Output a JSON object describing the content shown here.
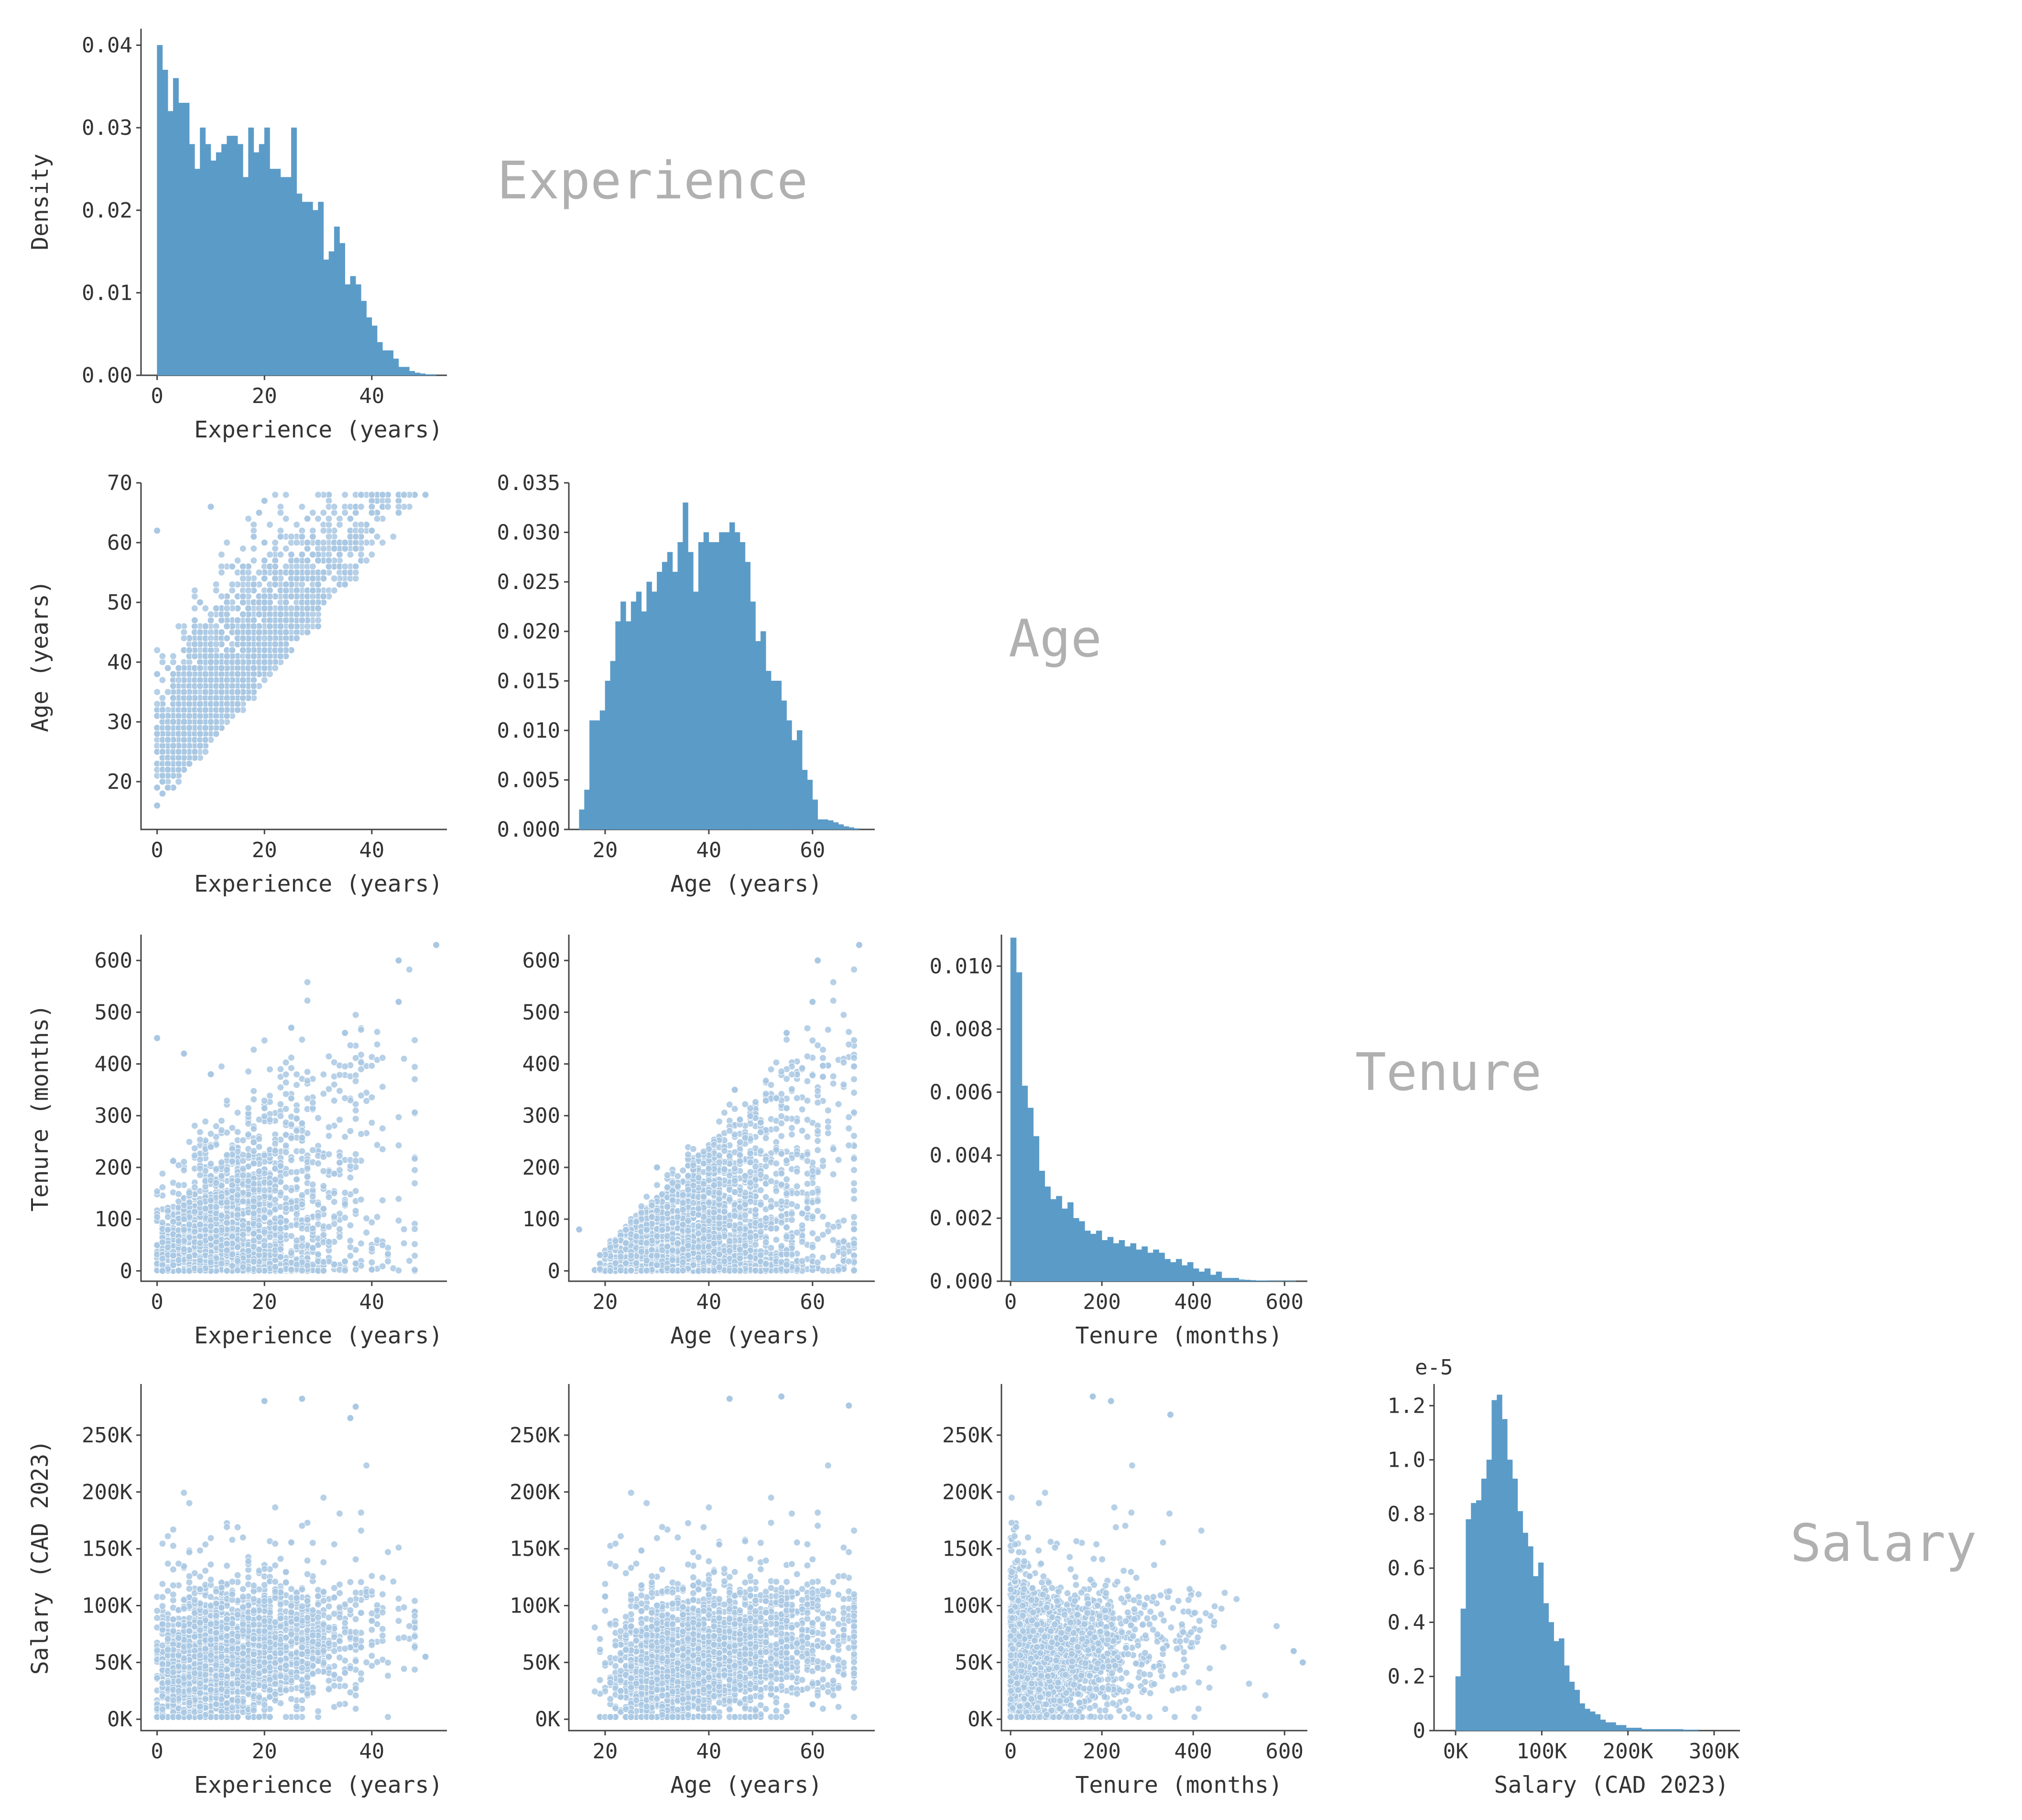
{
  "colors": {
    "hist": "#5b9bc8",
    "scatter": "#a9c8e3",
    "title": "#b0b0b0",
    "axis": "#444444"
  },
  "chart_data": [
    {
      "id": "exp-hist",
      "type": "bar",
      "xlabel": "Experience (years)",
      "ylabel": "Density",
      "xlim": [
        -3,
        54
      ],
      "ylim": [
        0,
        0.042
      ],
      "xticks": [
        0,
        20,
        40
      ],
      "yticks": [
        0.0,
        0.01,
        0.02,
        0.03,
        0.04
      ],
      "ytick_labels": [
        "0.00",
        "0.01",
        "0.02",
        "0.03",
        "0.04"
      ],
      "bin_start": 0,
      "bin_width": 1,
      "values": [
        0.04,
        0.037,
        0.032,
        0.036,
        0.033,
        0.033,
        0.028,
        0.025,
        0.03,
        0.028,
        0.026,
        0.027,
        0.028,
        0.029,
        0.029,
        0.028,
        0.024,
        0.03,
        0.027,
        0.028,
        0.03,
        0.025,
        0.025,
        0.024,
        0.024,
        0.03,
        0.022,
        0.021,
        0.021,
        0.02,
        0.021,
        0.014,
        0.015,
        0.018,
        0.016,
        0.011,
        0.012,
        0.011,
        0.009,
        0.007,
        0.006,
        0.004,
        0.003,
        0.003,
        0.002,
        0.001,
        0.001,
        0.0005,
        0.0003,
        0.0002,
        0.0001,
        0.0001
      ]
    },
    {
      "id": "age-hist",
      "type": "bar",
      "xlabel": "Age (years)",
      "xlim": [
        13,
        72
      ],
      "ylim": [
        0,
        0.035
      ],
      "xticks": [
        20,
        40,
        60
      ],
      "yticks": [
        0.0,
        0.005,
        0.01,
        0.015,
        0.02,
        0.025,
        0.03,
        0.035
      ],
      "ytick_labels": [
        "0.000",
        "0.005",
        "0.010",
        "0.015",
        "0.020",
        "0.025",
        "0.030",
        "0.035"
      ],
      "bin_start": 15,
      "bin_width": 1,
      "values": [
        0.002,
        0.004,
        0.011,
        0.011,
        0.012,
        0.015,
        0.017,
        0.021,
        0.023,
        0.021,
        0.023,
        0.024,
        0.022,
        0.025,
        0.024,
        0.026,
        0.027,
        0.028,
        0.026,
        0.029,
        0.033,
        0.028,
        0.024,
        0.029,
        0.03,
        0.029,
        0.029,
        0.03,
        0.03,
        0.031,
        0.03,
        0.029,
        0.027,
        0.023,
        0.019,
        0.02,
        0.016,
        0.015,
        0.015,
        0.013,
        0.011,
        0.009,
        0.01,
        0.006,
        0.005,
        0.003,
        0.001,
        0.001,
        0.0009,
        0.0007,
        0.0005,
        0.0003,
        0.0002,
        0.0001
      ]
    },
    {
      "id": "tenure-hist",
      "type": "bar",
      "xlabel": "Tenure (months)",
      "xlim": [
        -20,
        650
      ],
      "ylim": [
        0,
        0.011
      ],
      "xticks": [
        0,
        200,
        400,
        600
      ],
      "yticks": [
        0.0,
        0.002,
        0.004,
        0.006,
        0.008,
        0.01
      ],
      "ytick_labels": [
        "0.000",
        "0.002",
        "0.004",
        "0.006",
        "0.008",
        "0.010"
      ],
      "bin_start": 0,
      "bin_width": 12.5,
      "values": [
        0.0109,
        0.0098,
        0.0062,
        0.0055,
        0.0046,
        0.0035,
        0.003,
        0.0026,
        0.0027,
        0.0023,
        0.0025,
        0.002,
        0.0019,
        0.0016,
        0.0015,
        0.0016,
        0.0013,
        0.0014,
        0.0012,
        0.0013,
        0.0011,
        0.0012,
        0.001,
        0.0011,
        0.0009,
        0.001,
        0.0009,
        0.0007,
        0.0006,
        0.0007,
        0.0005,
        0.0006,
        0.0004,
        0.0003,
        0.0004,
        0.0002,
        0.0003,
        0.0001,
        0.0001,
        0.0001,
        5e-05,
        4e-05,
        3e-05,
        2e-05,
        2e-05,
        1e-05,
        1e-05,
        1e-05,
        1e-05,
        1e-05
      ]
    },
    {
      "id": "salary-hist",
      "type": "bar",
      "xlabel": "Salary (CAD 2023)",
      "offset_label": "e-5",
      "xlim": [
        -25000,
        330000
      ],
      "ylim": [
        0,
        1.28
      ],
      "xticks": [
        0,
        100000,
        200000,
        300000
      ],
      "xtick_labels": [
        "0K",
        "100K",
        "200K",
        "300K"
      ],
      "yticks": [
        0,
        0.2,
        0.4,
        0.6,
        0.8,
        1.0,
        1.2
      ],
      "ytick_labels": [
        "0",
        "0.2",
        "0.4",
        "0.6",
        "0.8",
        "1.0",
        "1.2"
      ],
      "bin_start": 0,
      "bin_width": 6000,
      "values": [
        0.2,
        0.45,
        0.78,
        0.84,
        0.85,
        0.93,
        1.0,
        1.22,
        1.24,
        1.15,
        1.0,
        0.93,
        0.81,
        0.73,
        0.68,
        0.57,
        0.62,
        0.47,
        0.4,
        0.33,
        0.34,
        0.24,
        0.18,
        0.15,
        0.1,
        0.08,
        0.07,
        0.06,
        0.04,
        0.03,
        0.03,
        0.02,
        0.02,
        0.01,
        0.01,
        0.01,
        0.005,
        0.005,
        0.005,
        0.005,
        0.005,
        0.005,
        0.005,
        0.005,
        0.003,
        0.003,
        0.003
      ]
    },
    {
      "id": "age-vs-exp",
      "type": "scatter",
      "xlabel": "Experience (years)",
      "ylabel": "Age (years)",
      "xlim": [
        -3,
        54
      ],
      "ylim": [
        12,
        70
      ],
      "xticks": [
        0,
        20,
        40
      ],
      "yticks": [
        20,
        30,
        40,
        50,
        60,
        70
      ],
      "description_points": "cloud bounded below by age = experience + 16",
      "sample": [
        [
          0,
          16
        ],
        [
          2,
          22
        ],
        [
          5,
          30
        ],
        [
          10,
          40
        ],
        [
          15,
          45
        ],
        [
          20,
          50
        ],
        [
          25,
          55
        ],
        [
          30,
          57
        ],
        [
          35,
          60
        ],
        [
          40,
          62
        ],
        [
          45,
          65
        ],
        [
          50,
          68
        ],
        [
          0,
          62
        ],
        [
          10,
          66
        ],
        [
          20,
          67
        ]
      ]
    },
    {
      "id": "tenure-vs-exp",
      "type": "scatter",
      "xlabel": "Experience (years)",
      "ylabel": "Tenure (months)",
      "xlim": [
        -3,
        54
      ],
      "ylim": [
        -20,
        650
      ],
      "xticks": [
        0,
        20,
        40
      ],
      "yticks": [
        0,
        100,
        200,
        300,
        400,
        500,
        600
      ],
      "sample": [
        [
          0,
          450
        ],
        [
          5,
          420
        ],
        [
          10,
          380
        ],
        [
          25,
          470
        ],
        [
          35,
          460
        ],
        [
          45,
          520
        ],
        [
          45,
          600
        ],
        [
          52,
          630
        ]
      ]
    },
    {
      "id": "tenure-vs-age",
      "type": "scatter",
      "xlabel": "Age (years)",
      "xlim": [
        13,
        72
      ],
      "ylim": [
        -20,
        650
      ],
      "xticks": [
        20,
        40,
        60
      ],
      "yticks": [
        0,
        100,
        200,
        300,
        400,
        500,
        600
      ],
      "sample": [
        [
          15,
          80
        ],
        [
          30,
          200
        ],
        [
          45,
          350
        ],
        [
          55,
          460
        ],
        [
          60,
          520
        ],
        [
          61,
          600
        ],
        [
          69,
          630
        ]
      ]
    },
    {
      "id": "salary-vs-exp",
      "type": "scatter",
      "xlabel": "Experience (years)",
      "ylabel": "Salary (CAD 2023)",
      "xlim": [
        -3,
        54
      ],
      "ylim": [
        -10000,
        295000
      ],
      "xticks": [
        0,
        20,
        40
      ],
      "yticks": [
        0,
        50000,
        100000,
        150000,
        200000,
        250000
      ],
      "ytick_labels": [
        "0K",
        "50K",
        "100K",
        "150K",
        "200K",
        "250K"
      ],
      "sample": [
        [
          20,
          280000
        ],
        [
          27,
          282000
        ],
        [
          37,
          275000
        ],
        [
          36,
          265000
        ],
        [
          50,
          55000
        ]
      ]
    },
    {
      "id": "salary-vs-age",
      "type": "scatter",
      "xlabel": "Age (years)",
      "xlim": [
        13,
        72
      ],
      "ylim": [
        -10000,
        295000
      ],
      "xticks": [
        20,
        40,
        60
      ],
      "yticks": [
        0,
        50000,
        100000,
        150000,
        200000,
        250000
      ],
      "ytick_labels": [
        "0K",
        "50K",
        "100K",
        "150K",
        "200K",
        "250K"
      ],
      "sample": [
        [
          44,
          282000
        ],
        [
          54,
          284000
        ],
        [
          67,
          276000
        ],
        [
          20,
          108000
        ]
      ]
    },
    {
      "id": "salary-vs-tenure",
      "type": "scatter",
      "xlabel": "Tenure (months)",
      "xlim": [
        -20,
        650
      ],
      "ylim": [
        -10000,
        295000
      ],
      "xticks": [
        0,
        200,
        400,
        600
      ],
      "yticks": [
        0,
        50000,
        100000,
        150000,
        200000,
        250000
      ],
      "ytick_labels": [
        "0K",
        "50K",
        "100K",
        "150K",
        "200K",
        "250K"
      ],
      "sample": [
        [
          180,
          284000
        ],
        [
          220,
          280000
        ],
        [
          350,
          268000
        ],
        [
          620,
          60000
        ],
        [
          640,
          50000
        ]
      ]
    }
  ],
  "diagonal_titles": [
    "Experience",
    "Age",
    "Tenure",
    "Salary"
  ]
}
